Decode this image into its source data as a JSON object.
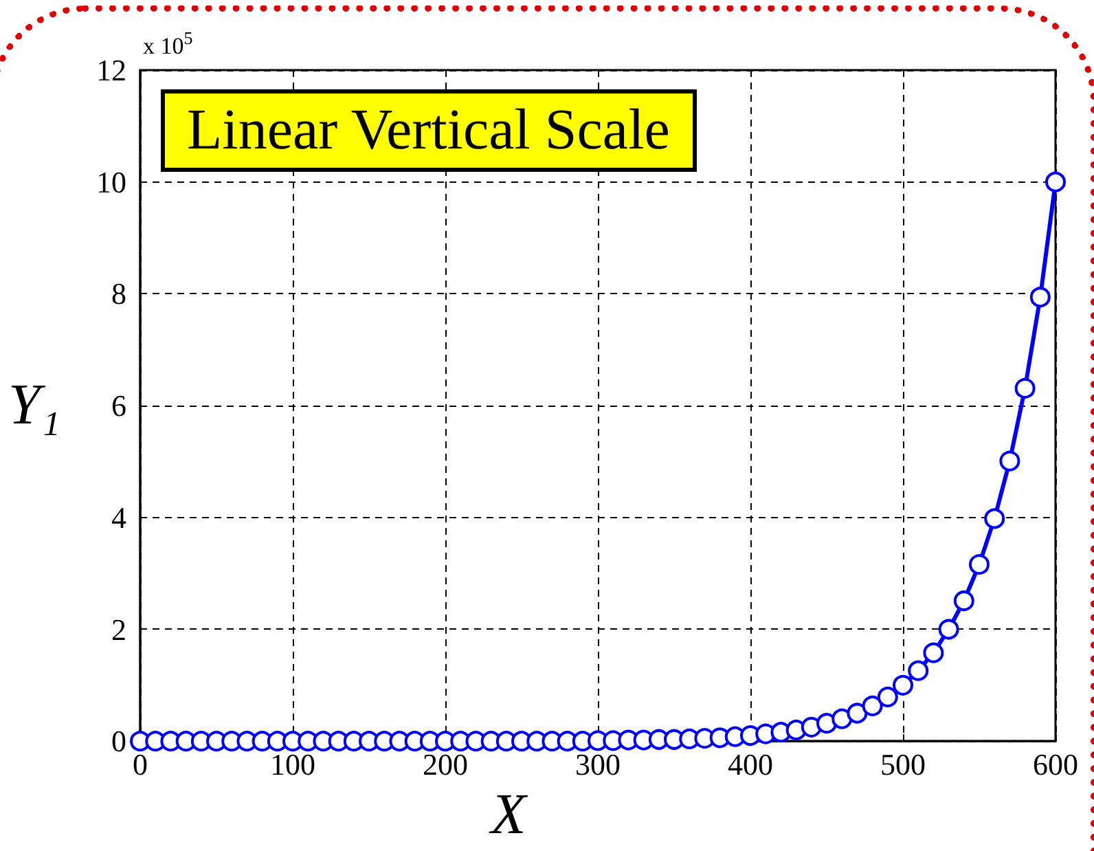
{
  "chart_data": {
    "type": "line",
    "title": "Linear Vertical Scale",
    "xlabel": "X",
    "ylabel": "Y₁",
    "annotations": [
      "x 10$^{5}$"
    ],
    "x": [
      0,
      10,
      20,
      30,
      40,
      50,
      60,
      70,
      80,
      90,
      100,
      110,
      120,
      130,
      140,
      150,
      160,
      170,
      180,
      190,
      200,
      210,
      220,
      230,
      240,
      250,
      260,
      270,
      280,
      290,
      300,
      310,
      320,
      330,
      340,
      350,
      360,
      370,
      380,
      390,
      400,
      410,
      420,
      430,
      440,
      450,
      460,
      470,
      480,
      490,
      500,
      510,
      520,
      530,
      540,
      550,
      560,
      570,
      580,
      590,
      600
    ],
    "series": [
      {
        "color": "#0000ff",
        "values": [
          0,
          0,
          0,
          0,
          0,
          0,
          0,
          0,
          0,
          0,
          0,
          0,
          0,
          0,
          0,
          0,
          0,
          0,
          0,
          0,
          0,
          0,
          0,
          0,
          0,
          0,
          0,
          0,
          0,
          0,
          0.01,
          0.01,
          0.02,
          0.02,
          0.03,
          0.03,
          0.04,
          0.05,
          0.06,
          0.08,
          0.1,
          0.13,
          0.16,
          0.2,
          0.25,
          0.32,
          0.4,
          0.5,
          0.63,
          0.79,
          1.0,
          1.26,
          1.58,
          2.0,
          2.51,
          3.16,
          3.98,
          5.01,
          6.31,
          7.94,
          10
        ]
      }
    ],
    "xlim": [
      0,
      600
    ],
    "xticks": [
      0,
      100,
      200,
      300,
      400,
      500,
      600
    ],
    "ylim": [
      0,
      12
    ],
    "yticks": [
      0,
      2,
      4,
      6,
      8,
      10,
      12
    ],
    "grid": true,
    "marker": "circle",
    "line_style": "solid"
  }
}
